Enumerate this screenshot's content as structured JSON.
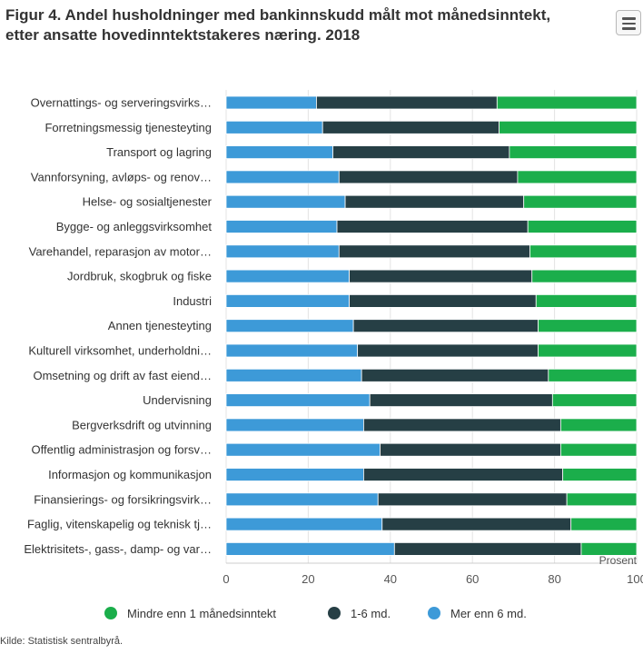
{
  "title": "Figur 4. Andel husholdninger med bankinnskudd målt mot månedsinntekt, etter ansatte hovedinntektstakeres næring. 2018",
  "menu": {
    "icon": "hamburger-menu-icon"
  },
  "source": "Kilde: Statistisk sentralbyrå.",
  "colors": {
    "mindre": "#1bae4b",
    "mellom": "#263f45",
    "mer": "#3d9ad8"
  },
  "chart_data": {
    "type": "bar",
    "orientation": "horizontal",
    "stacked": true,
    "xlabel": "Prosent",
    "xlim": [
      0,
      100
    ],
    "xticks": [
      0,
      20,
      40,
      60,
      80,
      100
    ],
    "categories": [
      "Overnattings- og serveringsvirks…",
      "Forretningsmessig tjenesteyting",
      "Transport og lagring",
      "Vannforsyning, avløps- og renov…",
      "Helse- og sosialtjenester",
      "Bygge- og anleggsvirksomhet",
      "Varehandel, reparasjon av motor…",
      "Jordbruk, skogbruk og fiske",
      "Industri",
      "Annen tjenesteyting",
      "Kulturell virksomhet, underholdni…",
      "Omsetning og drift av fast eiend…",
      "Undervisning",
      "Bergverksdrift og utvinning",
      "Offentlig administrasjon og forsv…",
      "Informasjon og kommunikasjon",
      "Finansierings- og forsikringsvirk…",
      "Faglig, vitenskapelig og teknisk tj…",
      "Elektrisitets-, gass-, damp- og var…"
    ],
    "series": [
      {
        "name": "Mer enn 6 md.",
        "color": "#3d9ad8",
        "values": [
          22.0,
          23.5,
          26.0,
          27.5,
          29.0,
          27.0,
          27.5,
          30.0,
          30.0,
          31.0,
          32.0,
          33.0,
          35.0,
          33.5,
          37.5,
          33.5,
          37.0,
          38.0,
          41.0
        ]
      },
      {
        "name": "1-6 md.",
        "color": "#263f45",
        "values": [
          44.0,
          43.0,
          43.0,
          43.5,
          43.5,
          46.5,
          46.5,
          44.5,
          45.5,
          45.0,
          44.0,
          45.5,
          44.5,
          48.0,
          44.0,
          48.5,
          46.0,
          46.0,
          45.5
        ]
      },
      {
        "name": "Mindre enn 1 månedsinntekt",
        "color": "#1bae4b",
        "values": [
          34.0,
          33.5,
          31.0,
          29.0,
          27.5,
          26.5,
          26.0,
          25.5,
          24.5,
          24.0,
          24.0,
          21.5,
          20.5,
          18.5,
          18.5,
          18.0,
          17.0,
          16.0,
          13.5
        ]
      }
    ],
    "legend": [
      {
        "name": "Mindre enn 1 månedsinntekt",
        "color": "#1bae4b"
      },
      {
        "name": "1-6 md.",
        "color": "#263f45"
      },
      {
        "name": "Mer enn 6 md.",
        "color": "#3d9ad8"
      }
    ],
    "legend_position": "bottom",
    "grid": true
  }
}
